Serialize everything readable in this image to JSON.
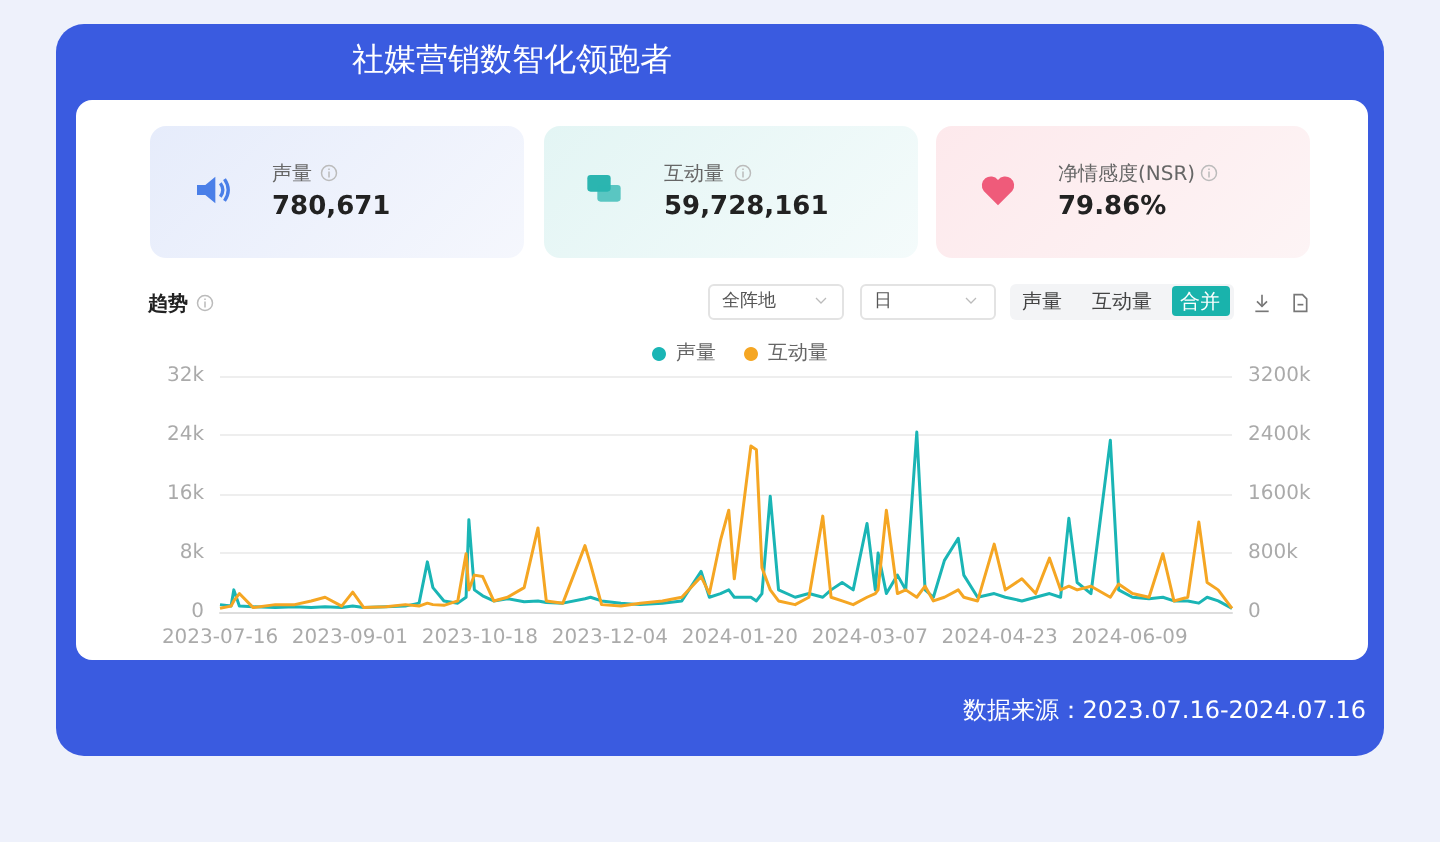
{
  "chart_data": {
    "type": "line",
    "title": "社媒营销数智化领跑者",
    "subtitle": "趋势",
    "annotations": [
      "声量",
      "780,671",
      "互动量",
      "59,728,161",
      "净情感度(NSR)",
      "79.86%",
      "全阵地",
      "日",
      "声量",
      "互动量",
      "合并",
      "数据来源：2023.07.16-2024.07.16"
    ],
    "x": [
      "2023-07-16",
      "2023-07-20",
      "2023-07-21",
      "2023-07-23",
      "2023-07-28",
      "2023-08-05",
      "2023-08-12",
      "2023-08-18",
      "2023-08-23",
      "2023-08-29",
      "2023-09-02",
      "2023-09-06",
      "2023-09-14",
      "2023-09-21",
      "2023-09-26",
      "2023-09-29",
      "2023-10-01",
      "2023-10-05",
      "2023-10-10",
      "2023-10-13",
      "2023-10-14",
      "2023-10-16",
      "2023-10-19",
      "2023-10-23",
      "2023-10-28",
      "2023-11-03",
      "2023-11-08",
      "2023-11-11",
      "2023-11-17",
      "2023-11-25",
      "2023-11-27",
      "2023-12-01",
      "2023-12-08",
      "2023-12-15",
      "2023-12-23",
      "2023-12-30",
      "2024-01-06",
      "2024-01-09",
      "2024-01-13",
      "2024-01-16",
      "2024-01-18",
      "2024-01-24",
      "2024-01-26",
      "2024-01-28",
      "2024-01-31",
      "2024-02-03",
      "2024-02-09",
      "2024-02-14",
      "2024-02-19",
      "2024-02-22",
      "2024-02-26",
      "2024-03-01",
      "2024-03-06",
      "2024-03-09",
      "2024-03-10",
      "2024-03-13",
      "2024-03-17",
      "2024-03-20",
      "2024-03-24",
      "2024-03-27",
      "2024-03-30",
      "2024-04-03",
      "2024-04-08",
      "2024-04-10",
      "2024-04-15",
      "2024-04-21",
      "2024-04-25",
      "2024-05-01",
      "2024-05-06",
      "2024-05-11",
      "2024-05-15",
      "2024-05-18",
      "2024-05-21",
      "2024-05-26",
      "2024-06-02",
      "2024-06-05",
      "2024-06-10",
      "2024-06-16",
      "2024-06-21",
      "2024-06-25",
      "2024-06-30",
      "2024-07-04",
      "2024-07-07",
      "2024-07-11",
      "2024-07-16"
    ],
    "series": [
      {
        "name": "声量",
        "color": "#1ab5b5",
        "values": [
          1000,
          800,
          3000,
          800,
          700,
          600,
          700,
          600,
          700,
          600,
          800,
          600,
          700,
          800,
          1200,
          6800,
          3300,
          1500,
          1200,
          2000,
          12500,
          3000,
          2200,
          1500,
          1800,
          1400,
          1500,
          1300,
          1200,
          1800,
          2000,
          1500,
          1200,
          1000,
          1200,
          1500,
          5500,
          2000,
          2500,
          3000,
          2000,
          2000,
          1500,
          2500,
          15700,
          3000,
          2000,
          2500,
          2000,
          3000,
          4000,
          3000,
          12000,
          3000,
          8000,
          2500,
          5000,
          3000,
          24400,
          3000,
          2000,
          7000,
          10000,
          5000,
          2000,
          2500,
          2000,
          1500,
          2000,
          2500,
          2000,
          12700,
          4000,
          2500,
          23300,
          3000,
          2000,
          1800,
          2000,
          1500,
          1500,
          1200,
          2000,
          1500,
          500
        ]
      },
      {
        "name": "互动量",
        "color": "#f5a623",
        "axis": "y2",
        "values": [
          50000,
          80000,
          150000,
          250000,
          60000,
          100000,
          100000,
          150000,
          200000,
          80000,
          270000,
          60000,
          70000,
          100000,
          80000,
          120000,
          100000,
          90000,
          150000,
          790000,
          300000,
          500000,
          480000,
          150000,
          200000,
          330000,
          1140000,
          150000,
          120000,
          900000,
          650000,
          100000,
          80000,
          120000,
          150000,
          200000,
          480000,
          250000,
          970000,
          1380000,
          450000,
          2250000,
          2200000,
          600000,
          300000,
          150000,
          100000,
          200000,
          1300000,
          200000,
          150000,
          100000,
          200000,
          250000,
          300000,
          1380000,
          250000,
          300000,
          200000,
          350000,
          150000,
          200000,
          300000,
          200000,
          150000,
          920000,
          300000,
          450000,
          250000,
          730000,
          300000,
          350000,
          300000,
          350000,
          200000,
          380000,
          250000,
          200000,
          790000,
          150000,
          200000,
          1220000,
          400000,
          300000,
          50000
        ]
      }
    ],
    "xlim": [
      "2023-07-16",
      "2024-07-16"
    ],
    "xticks": [
      "2023-07-16",
      "2023-09-01",
      "2023-10-18",
      "2023-12-04",
      "2024-01-20",
      "2024-03-07",
      "2024-04-23",
      "2024-06-09"
    ],
    "ylim": [
      0,
      32000
    ],
    "yticks": [
      0,
      {
        "value": 8000,
        "label": "8k"
      },
      {
        "value": 16000,
        "label": "16k"
      },
      {
        "value": 24000,
        "label": "24k"
      },
      {
        "value": 32000,
        "label": "32k"
      }
    ],
    "y2lim": [
      0,
      3200000
    ],
    "y2ticks": [
      0,
      {
        "value": 800000,
        "label": "800k"
      },
      {
        "value": 1600000,
        "label": "1600k"
      },
      {
        "value": 2400000,
        "label": "2400k"
      },
      {
        "value": 3200000,
        "label": "3200k"
      }
    ],
    "grid": "y",
    "legend": "top",
    "marker": "none",
    "line_style": "solid"
  }
}
